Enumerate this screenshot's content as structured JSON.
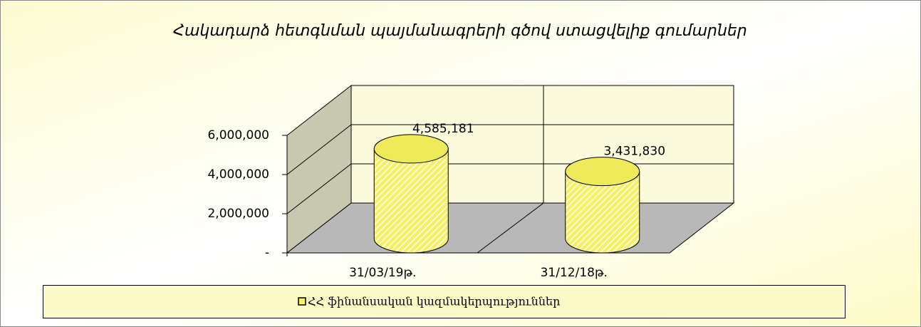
{
  "chart_data": {
    "type": "bar3d",
    "title": "Հակադարձ հետգնման պայմանագրերի գծով ստացվելիք գումարներ",
    "categories": [
      "31/03/19թ.",
      "31/12/18թ."
    ],
    "series": [
      {
        "name": "ՀՀ ֆինանսական կազմակերպություններ",
        "color": "#f2f07a",
        "values": [
          4585181,
          3431830
        ],
        "value_labels": [
          "4,585,181",
          "3,431,830"
        ]
      }
    ],
    "ylim": [
      0,
      6000000
    ],
    "yticks": [
      {
        "value": 0,
        "label": "-"
      },
      {
        "value": 2000000,
        "label": "2,000,000"
      },
      {
        "value": 4000000,
        "label": "4,000,000"
      },
      {
        "value": 6000000,
        "label": "6,000,000"
      }
    ],
    "grid": true,
    "legend": "bottom"
  }
}
